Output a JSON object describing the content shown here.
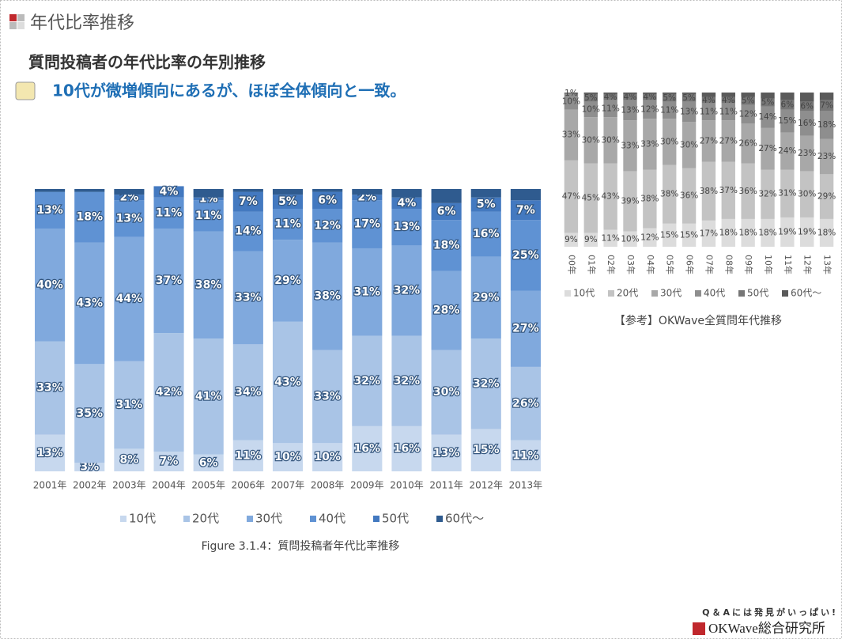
{
  "header": {
    "section": "年代比率推移",
    "title": "質問投稿者の年代比率の年別推移",
    "subtitle": "10代が微増傾向にあるが、ほぼ全体傾向と一致。"
  },
  "footer": {
    "tagline": "Q＆Aには発見がいっぱい!",
    "brand": "OKWave総合研究所"
  },
  "chart_data": [
    {
      "type": "stacked_bar",
      "caption": "Figure 3.1.4：質問投稿者年代比率推移",
      "categories": [
        "2001年",
        "2002年",
        "2003年",
        "2004年",
        "2005年",
        "2006年",
        "2007年",
        "2008年",
        "2009年",
        "2010年",
        "2011年",
        "2012年",
        "2013年"
      ],
      "ylim": [
        0,
        100
      ],
      "series": [
        {
          "name": "10代",
          "color": "#c7d8ee",
          "values": [
            13,
            3,
            8,
            7,
            6,
            11,
            10,
            10,
            16,
            16,
            13,
            15,
            11
          ],
          "value_labels": [
            "13%",
            "3%",
            "8%",
            "7%",
            "6%",
            "11%",
            "10%",
            "10%",
            "16%",
            "16%",
            "13%",
            "15%",
            "11%"
          ]
        },
        {
          "name": "20代",
          "color": "#a9c4e6",
          "values": [
            33,
            35,
            31,
            42,
            41,
            34,
            43,
            33,
            32,
            32,
            30,
            32,
            26
          ],
          "value_labels": [
            "33%",
            "35%",
            "31%",
            "42%",
            "41%",
            "34%",
            "43%",
            "33%",
            "32%",
            "32%",
            "30%",
            "32%",
            "26%"
          ]
        },
        {
          "name": "30代",
          "color": "#80a9dd",
          "values": [
            40,
            43,
            44,
            37,
            38,
            33,
            29,
            38,
            31,
            32,
            28,
            29,
            27
          ],
          "value_labels": [
            "40%",
            "43%",
            "44%",
            "37%",
            "38%",
            "33%",
            "29%",
            "38%",
            "31%",
            "32%",
            "28%",
            "29%",
            "27%"
          ]
        },
        {
          "name": "40代",
          "color": "#5f92d3",
          "values": [
            13,
            18,
            13,
            11,
            11,
            14,
            11,
            12,
            17,
            13,
            18,
            16,
            25
          ],
          "value_labels": [
            "13%",
            "18%",
            "13%",
            "11%",
            "11%",
            "14%",
            "11%",
            "12%",
            "17%",
            "13%",
            "18%",
            "16%",
            "25%"
          ]
        },
        {
          "name": "50代",
          "color": "#4379c0",
          "values": [
            null,
            null,
            2,
            4,
            1,
            7,
            5,
            6,
            2,
            4,
            6,
            5,
            7
          ],
          "value_labels": [
            null,
            null,
            "2%",
            "4%",
            "1%",
            "7%",
            "5%",
            "6%",
            "2%",
            "4%",
            "6%",
            "5%",
            "7%"
          ]
        },
        {
          "name": "60代～",
          "color": "#2f5b8f",
          "values": [
            1,
            1,
            2,
            0,
            3,
            1,
            2,
            1,
            2,
            3,
            5,
            3,
            4
          ]
        }
      ]
    },
    {
      "type": "stacked_bar",
      "caption": "【参考】OKWave全質問年代推移",
      "categories": [
        "00年",
        "01年",
        "02年",
        "03年",
        "04年",
        "05年",
        "06年",
        "07年",
        "08年",
        "09年",
        "10年",
        "11年",
        "12年",
        "13年"
      ],
      "ylim": [
        0,
        100
      ],
      "series": [
        {
          "name": "10代",
          "color": "#dcdcdc",
          "values": [
            9,
            9,
            11,
            10,
            12,
            15,
            15,
            17,
            18,
            18,
            18,
            19,
            19,
            18
          ],
          "value_labels": [
            "9%",
            "9%",
            "11%",
            "10%",
            "12%",
            "15%",
            "15%",
            "17%",
            "18%",
            "18%",
            "18%",
            "19%",
            "19%",
            "18%"
          ]
        },
        {
          "name": "20代",
          "color": "#c3c3c3",
          "values": [
            47,
            45,
            43,
            39,
            38,
            38,
            36,
            38,
            37,
            36,
            32,
            31,
            30,
            29
          ],
          "value_labels": [
            "47%",
            "45%",
            "43%",
            "39%",
            "38%",
            "38%",
            "36%",
            "38%",
            "37%",
            "36%",
            "32%",
            "31%",
            "30%",
            "29%"
          ]
        },
        {
          "name": "30代",
          "color": "#a8a8a8",
          "values": [
            33,
            30,
            30,
            33,
            33,
            30,
            30,
            27,
            27,
            26,
            27,
            24,
            23,
            23
          ],
          "value_labels": [
            "33%",
            "30%",
            "30%",
            "33%",
            "33%",
            "30%",
            "30%",
            "27%",
            "27%",
            "26%",
            "27%",
            "24%",
            "23%",
            "23%"
          ]
        },
        {
          "name": "40代",
          "color": "#8e8e8e",
          "values": [
            10,
            10,
            11,
            13,
            12,
            11,
            13,
            11,
            11,
            12,
            14,
            15,
            16,
            18
          ],
          "value_labels": [
            "10%",
            "10%",
            "11%",
            "13%",
            "12%",
            "11%",
            "13%",
            "11%",
            "11%",
            "12%",
            "14%",
            "15%",
            "16%",
            "18%"
          ]
        },
        {
          "name": "50代",
          "color": "#767676",
          "values": [
            1,
            5,
            4,
            4,
            4,
            5,
            5,
            4,
            4,
            5,
            5,
            6,
            6,
            7
          ],
          "value_labels": [
            "1%",
            "5%",
            "4%",
            "4%",
            "4%",
            "5%",
            "5%",
            "4%",
            "4%",
            "5%",
            "5%",
            "6%",
            "6%",
            "7%"
          ]
        },
        {
          "name": "60代～",
          "color": "#5a5a5a",
          "values": [
            0,
            1,
            1,
            1,
            1,
            1,
            1,
            3,
            3,
            3,
            4,
            5,
            6,
            5
          ]
        }
      ]
    }
  ]
}
